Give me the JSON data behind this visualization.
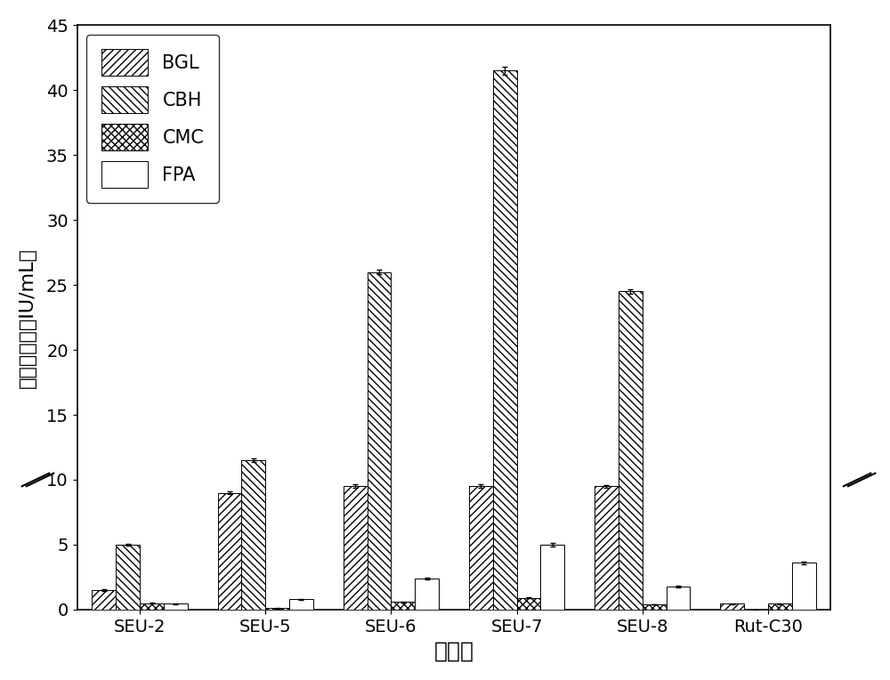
{
  "categories": [
    "SEU-2",
    "SEU-5",
    "SEU-6",
    "SEU-7",
    "SEU-8",
    "Rut-C30"
  ],
  "series_order": [
    "BGL",
    "CBH",
    "CMC",
    "FPA"
  ],
  "BGL": {
    "values": [
      1.5,
      9.0,
      9.5,
      9.5,
      9.5,
      0.45
    ],
    "errors": [
      0.05,
      0.1,
      0.15,
      0.15,
      0.12,
      0.03
    ],
    "hatch": "////",
    "facecolor": "white"
  },
  "CBH": {
    "values": [
      5.0,
      11.5,
      26.0,
      41.5,
      24.5,
      0.0
    ],
    "errors": [
      0.08,
      0.12,
      0.2,
      0.3,
      0.2,
      0.0
    ],
    "hatch": "\\\\\\\\",
    "facecolor": "white"
  },
  "CMC": {
    "values": [
      0.5,
      0.1,
      0.6,
      0.9,
      0.4,
      0.45
    ],
    "errors": [
      0.02,
      0.01,
      0.03,
      0.04,
      0.02,
      0.02
    ],
    "hatch": "xxxx",
    "facecolor": "white"
  },
  "FPA": {
    "values": [
      0.45,
      0.8,
      2.4,
      5.0,
      1.75,
      3.6
    ],
    "errors": [
      0.02,
      0.03,
      0.08,
      0.15,
      0.06,
      0.1
    ],
    "hatch": "====",
    "facecolor": "white"
  },
  "xlabel": "转化子",
  "ylabel": "纤维素酶活（IU/mL）",
  "ylim": [
    0,
    45
  ],
  "yticks": [
    0,
    5,
    10,
    15,
    20,
    25,
    30,
    35,
    40,
    45
  ],
  "background_color": "#f2f2f2",
  "axis_fontsize": 18,
  "tick_fontsize": 14,
  "legend_fontsize": 15,
  "bar_width": 0.19
}
